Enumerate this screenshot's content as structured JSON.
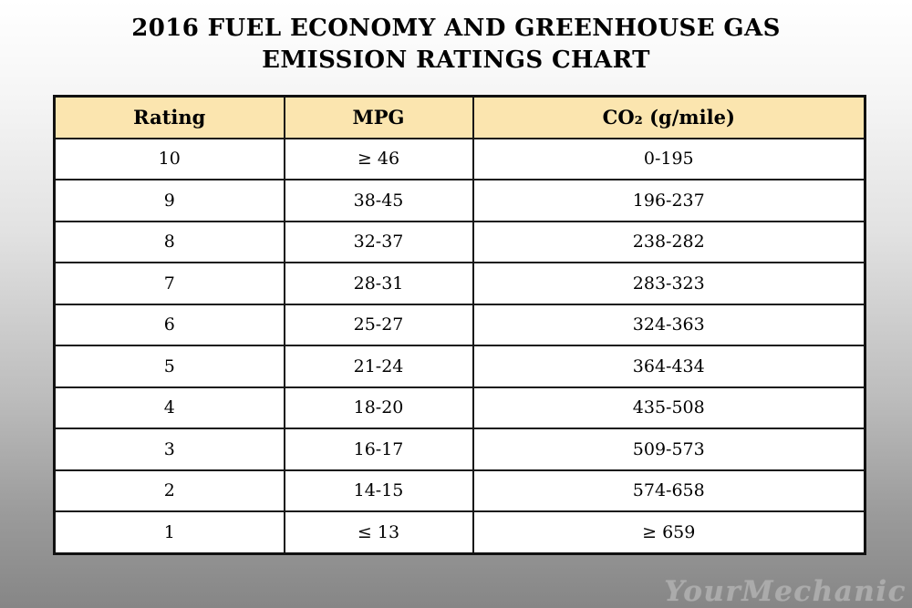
{
  "page": {
    "title_line1": "2016 FUEL ECONOMY AND GREENHOUSE GAS",
    "title_line2": "EMISSION RATINGS CHART"
  },
  "table": {
    "headers": [
      "Rating",
      "MPG",
      "CO₂ (g/mile)"
    ],
    "rows": [
      [
        "10",
        "≥ 46",
        "0-195"
      ],
      [
        "9",
        "38-45",
        "196-237"
      ],
      [
        "8",
        "32-37",
        "238-282"
      ],
      [
        "7",
        "28-31",
        "283-323"
      ],
      [
        "6",
        "25-27",
        "324-363"
      ],
      [
        "5",
        "21-24",
        "364-434"
      ],
      [
        "4",
        "18-20",
        "435-508"
      ],
      [
        "3",
        "16-17",
        "509-573"
      ],
      [
        "2",
        "14-15",
        "574-658"
      ],
      [
        "1",
        "≤ 13",
        "≥ 659"
      ]
    ],
    "colors": {
      "header_background": "#fbe5af",
      "border": "#161616",
      "cell_background": "#ffffff"
    }
  },
  "watermark": {
    "text": "YourMechanic",
    "color": "#ababab"
  },
  "chart_data": {
    "type": "table",
    "title": "2016 FUEL ECONOMY AND GREENHOUSE GAS EMISSION RATINGS CHART",
    "columns": [
      "Rating",
      "MPG",
      "CO₂ (g/mile)"
    ],
    "rows": [
      {
        "rating": 10,
        "mpg": "≥ 46",
        "co2_g_per_mile": "0-195"
      },
      {
        "rating": 9,
        "mpg": "38-45",
        "co2_g_per_mile": "196-237"
      },
      {
        "rating": 8,
        "mpg": "32-37",
        "co2_g_per_mile": "238-282"
      },
      {
        "rating": 7,
        "mpg": "28-31",
        "co2_g_per_mile": "283-323"
      },
      {
        "rating": 6,
        "mpg": "25-27",
        "co2_g_per_mile": "324-363"
      },
      {
        "rating": 5,
        "mpg": "21-24",
        "co2_g_per_mile": "364-434"
      },
      {
        "rating": 4,
        "mpg": "18-20",
        "co2_g_per_mile": "435-508"
      },
      {
        "rating": 3,
        "mpg": "16-17",
        "co2_g_per_mile": "509-573"
      },
      {
        "rating": 2,
        "mpg": "14-15",
        "co2_g_per_mile": "574-658"
      },
      {
        "rating": 1,
        "mpg": "≤ 13",
        "co2_g_per_mile": "≥ 659"
      }
    ]
  }
}
